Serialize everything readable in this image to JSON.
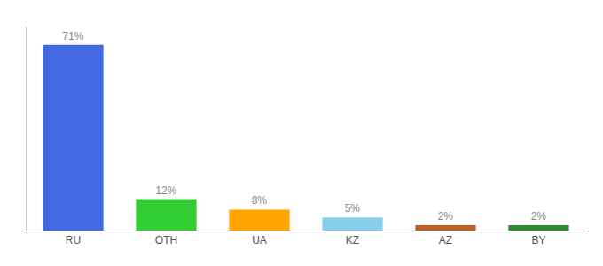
{
  "chart_data": {
    "type": "bar",
    "categories": [
      "RU",
      "OTH",
      "UA",
      "KZ",
      "AZ",
      "BY"
    ],
    "values": [
      71,
      12,
      8,
      5,
      2,
      2
    ],
    "value_labels": [
      "71%",
      "12%",
      "8%",
      "5%",
      "2%",
      "2%"
    ],
    "colors": [
      "#4169e1",
      "#32cd32",
      "#ffa500",
      "#87ceeb",
      "#b8622a",
      "#2d8a2d"
    ],
    "ylim": [
      0,
      78
    ],
    "data_labels": true,
    "tick_labels": "x",
    "grid": false
  }
}
